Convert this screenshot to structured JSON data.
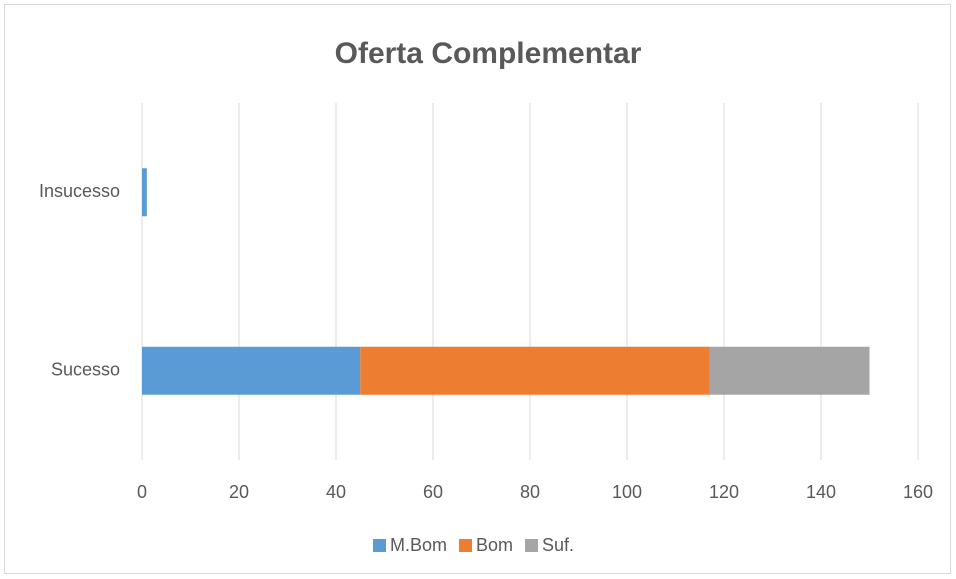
{
  "chart_data": {
    "type": "stacked-barh",
    "title": "Oferta Complementar",
    "categories": [
      "Insucesso",
      "Sucesso"
    ],
    "series": [
      {
        "name": "M.Bom",
        "color": "#5b9bd5",
        "values": [
          1,
          45
        ]
      },
      {
        "name": "Bom",
        "color": "#ed7d31",
        "values": [
          0,
          72
        ]
      },
      {
        "name": "Suf.",
        "color": "#a5a5a5",
        "values": [
          0,
          33
        ]
      }
    ],
    "xlim": [
      0,
      160
    ],
    "xticks": [
      0,
      20,
      40,
      60,
      80,
      100,
      120,
      140,
      160
    ],
    "grid": true,
    "legend": "bottom"
  }
}
